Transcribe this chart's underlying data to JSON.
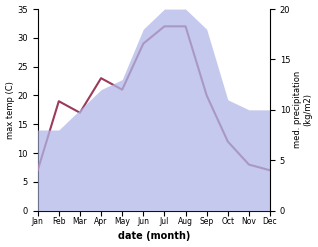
{
  "months": [
    "Jan",
    "Feb",
    "Mar",
    "Apr",
    "May",
    "Jun",
    "Jul",
    "Aug",
    "Sep",
    "Oct",
    "Nov",
    "Dec"
  ],
  "max_temp": [
    7,
    19,
    17,
    23,
    21,
    29,
    32,
    32,
    20,
    12,
    8,
    7
  ],
  "precipitation": [
    8,
    8,
    10,
    12,
    13,
    18,
    20,
    20,
    18,
    11,
    10,
    10
  ],
  "temp_color": "#9b3a5a",
  "precip_fill_color": "#b0b8e8",
  "precip_fill_alpha": 0.75,
  "temp_ylim": [
    0,
    35
  ],
  "precip_ylim": [
    0,
    20
  ],
  "temp_yticks": [
    0,
    5,
    10,
    15,
    20,
    25,
    30,
    35
  ],
  "precip_yticks": [
    0,
    5,
    10,
    15,
    20
  ],
  "xlabel": "date (month)",
  "ylabel_left": "max temp (C)",
  "ylabel_right": "med. precipitation\n(kg/m2)",
  "bg_color": "#ffffff"
}
